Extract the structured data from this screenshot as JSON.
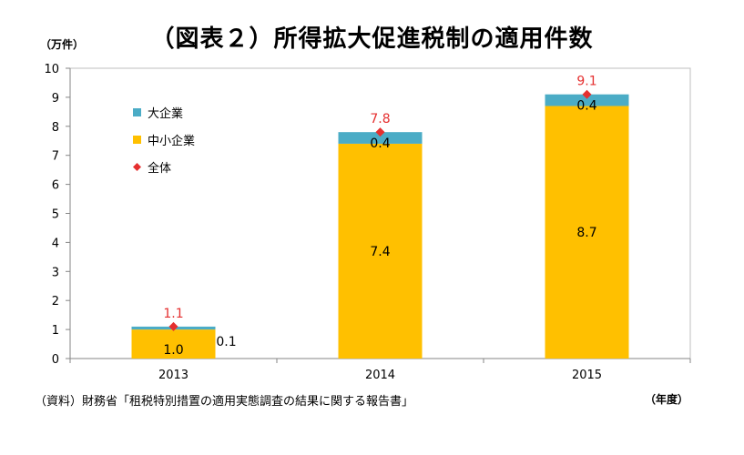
{
  "chart_data": {
    "type": "bar",
    "stacked": true,
    "title": "（図表２）所得拡大促進税制の適用件数",
    "ylabel": "（万件）",
    "xlabel": "（年度）",
    "source": "（資料）財務省「租税特別措置の適用実態調査の結果に関する報告書」",
    "categories": [
      "2013",
      "2014",
      "2015"
    ],
    "ylim": [
      0,
      10
    ],
    "yticks": [
      "0",
      "1",
      "2",
      "3",
      "4",
      "5",
      "6",
      "7",
      "8",
      "9",
      "10"
    ],
    "grid": false,
    "legend_position": "top-left",
    "series": [
      {
        "name": "中小企業",
        "values": [
          1.0,
          7.4,
          8.7
        ],
        "labels": [
          "1.0",
          "7.4",
          "8.7"
        ],
        "color": "#ffc000"
      },
      {
        "name": "大企業",
        "values": [
          0.1,
          0.4,
          0.4
        ],
        "labels": [
          "0.1",
          "0.4",
          "0.4"
        ],
        "color": "#4bacc6"
      }
    ],
    "total": {
      "name": "全体",
      "values": [
        1.1,
        7.8,
        9.1
      ],
      "labels": [
        "1.1",
        "7.8",
        "9.1"
      ],
      "color": "#e52f2f",
      "marker": "diamond"
    }
  }
}
